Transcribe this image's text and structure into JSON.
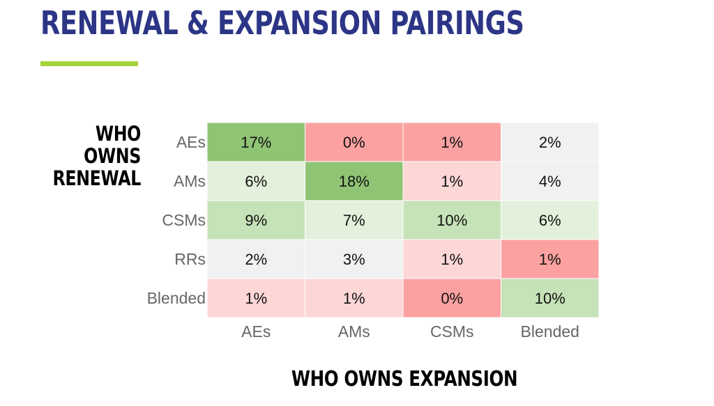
{
  "title": "RENEWAL & EXPANSION PAIRINGS",
  "colors": {
    "title": "#2c3586",
    "accent": "#a6d23a",
    "high_green": "#8fc474",
    "mid_green": "#c6e2b8",
    "light_green": "#e3f0db",
    "neutral": "#f1f1f1",
    "light_red": "#fdd6d6",
    "red": "#fba1a1"
  },
  "chart_data": {
    "type": "heatmap",
    "ylabel": "WHO OWNS RENEWAL",
    "xlabel": "WHO OWNS EXPANSION",
    "rows": [
      "AEs",
      "AMs",
      "CSMs",
      "RRs",
      "Blended"
    ],
    "columns": [
      "AEs",
      "AMs",
      "CSMs",
      "Blended"
    ],
    "values": [
      [
        "17%",
        "0%",
        "1%",
        "2%"
      ],
      [
        "6%",
        "18%",
        "1%",
        "4%"
      ],
      [
        "9%",
        "7%",
        "10%",
        "6%"
      ],
      [
        "2%",
        "3%",
        "1%",
        "1%"
      ],
      [
        "1%",
        "1%",
        "0%",
        "10%"
      ]
    ],
    "cell_colors": [
      [
        "#8fc474",
        "#fba1a1",
        "#fba1a1",
        "#f1f1f1"
      ],
      [
        "#e3f0db",
        "#8fc474",
        "#fdd6d6",
        "#f1f1f1"
      ],
      [
        "#c6e2b8",
        "#e3f0db",
        "#c6e2b8",
        "#e3f0db"
      ],
      [
        "#f1f1f1",
        "#f1f1f1",
        "#fdd6d6",
        "#fba1a1"
      ],
      [
        "#fdd6d6",
        "#fdd6d6",
        "#fba1a1",
        "#c6e2b8"
      ]
    ]
  }
}
